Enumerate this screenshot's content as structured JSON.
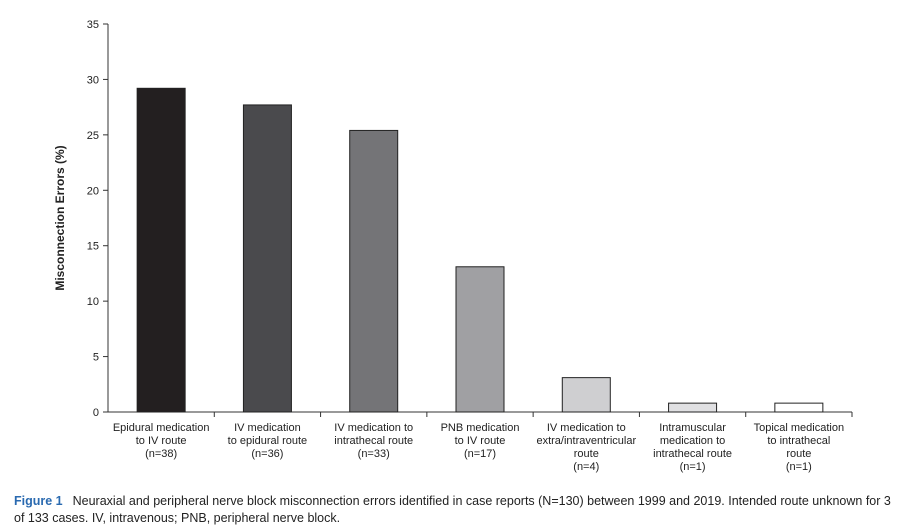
{
  "chart_data": {
    "type": "bar",
    "ylabel": "Misconnection Errors (%)",
    "ylim": [
      0,
      35
    ],
    "yticks": [
      0,
      5,
      10,
      15,
      20,
      25,
      30,
      35
    ],
    "grid": false,
    "legend": "none",
    "categories": [
      [
        "Epidural medication",
        "to IV route",
        "(n=38)"
      ],
      [
        "IV medication",
        "to epidural route",
        "(n=36)"
      ],
      [
        "IV medication to",
        "intrathecal route",
        "(n=33)"
      ],
      [
        "PNB medication",
        "to IV route",
        "(n=17)"
      ],
      [
        "IV medication to",
        "extra/intraventricular",
        "route",
        "(n=4)"
      ],
      [
        "Intramuscular",
        "medication to",
        "intrathecal route",
        "(n=1)"
      ],
      [
        "Topical medication",
        "to intrathecal",
        "route",
        "(n=1)"
      ]
    ],
    "values": [
      29.2,
      27.7,
      25.4,
      13.1,
      3.1,
      0.8,
      0.8
    ],
    "bar_colors": [
      "#231f20",
      "#4a4a4d",
      "#747477",
      "#a0a0a3",
      "#cfcfd1",
      "#e0e0e2",
      "#ffffff"
    ]
  },
  "caption": {
    "label": "Figure 1",
    "text": "Neuraxial and peripheral nerve block misconnection errors identified in case reports (N=130) between 1999 and 2019. Intended route unknown for 3 of 133 cases. IV, intravenous; PNB, peripheral nerve block."
  }
}
